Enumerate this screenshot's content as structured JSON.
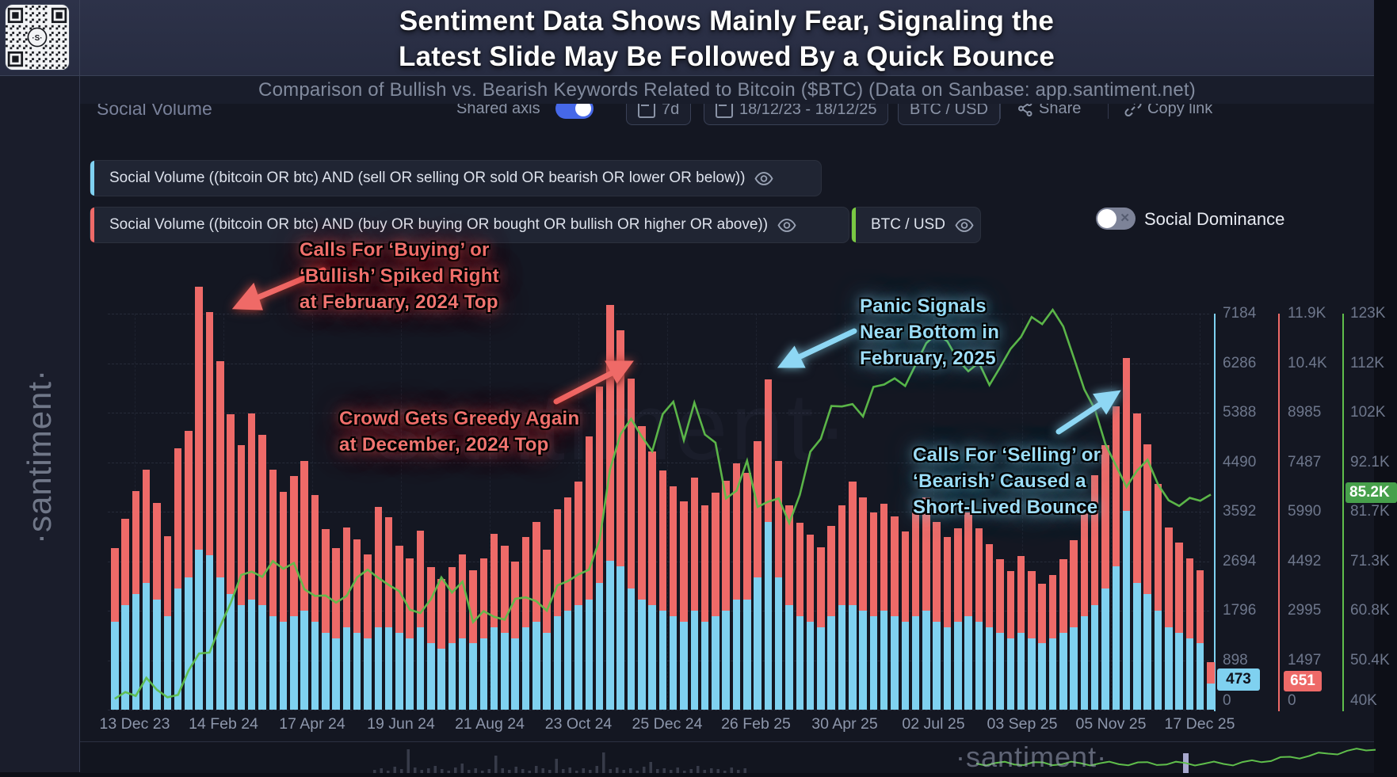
{
  "header": {
    "title_line1": "Sentiment Data Shows Mainly Fear, Signaling the",
    "title_line2": "Latest Slide May Be Followed By a Quick Bounce",
    "subtitle": "Comparison of Bullish vs. Bearish Keywords Related to Bitcoin ($BTC) (Data on Sanbase: app.santiment.net)"
  },
  "brand": {
    "vertical_text": "·santiment·",
    "qr_center_label": "·S·",
    "center_watermark": "·santiment·",
    "mini_watermark": "·santiment·"
  },
  "toolbar": {
    "widget_title": "Social Volume",
    "shared_axis_label": "Shared axis",
    "interval_label": "7d",
    "date_range": "18/12/23 - 18/12/25",
    "pair_label": "BTC / USD",
    "share_label": "Share",
    "copy_link_label": "Copy link"
  },
  "legend": {
    "bearish_query": "Social Volume ((bitcoin OR btc) AND (sell OR selling OR sold OR bearish OR lower OR below))",
    "bullish_query": "Social Volume ((bitcoin OR btc) AND (buy OR buying OR bought OR bullish OR higher OR above))",
    "price_label": "BTC / USD",
    "social_dominance_label": "Social Dominance"
  },
  "annotations": {
    "red": [
      {
        "lines": [
          "Calls For ‘Buying’ or",
          "‘Bullish’ Spiked Right",
          "at February, 2024 Top"
        ]
      },
      {
        "lines": [
          "Crowd Gets Greedy Again",
          "at December, 2024 Top"
        ]
      }
    ],
    "blue": [
      {
        "lines": [
          "Panic Signals",
          "Near Bottom in",
          "February, 2025"
        ]
      },
      {
        "lines": [
          "Calls For ‘Selling’ or",
          "‘Bearish’ Caused a",
          "Short-Lived Bounce"
        ]
      }
    ]
  },
  "colors": {
    "bearish_blue": "#7fd1f0",
    "bullish_red": "#ee6a68",
    "price_green": "#5fbe4b",
    "badge_green_bg": "#47a04b",
    "background": "#141722",
    "header_bg": "#2b3047"
  },
  "chart_data": {
    "type": "bar",
    "subtype": "stacked-bars-with-line",
    "title": "Social Volume",
    "x_labels": [
      "13 Dec 23",
      "14 Feb 24",
      "17 Apr 24",
      "19 Jun 24",
      "21 Aug 24",
      "23 Oct 24",
      "25 Dec 24",
      "26 Feb 25",
      "30 Apr 25",
      "02 Jul 25",
      "03 Sep 25",
      "05 Nov 25",
      "17 Dec 25"
    ],
    "axes": {
      "bearish_blue_ticks": [
        "7184",
        "6286",
        "5388",
        "4490",
        "3592",
        "2694",
        "1796",
        "898",
        "0"
      ],
      "bullish_red_ticks": [
        "11.9K",
        "10.4K",
        "8985",
        "7487",
        "5990",
        "4492",
        "2995",
        "1497",
        "0"
      ],
      "price_green_ticks": [
        "123K",
        "112K",
        "102K",
        "92.1K",
        "81.7K",
        "71.3K",
        "60.8K",
        "50.4K",
        "40K"
      ],
      "bearish_axis_max": 7184,
      "bullish_axis_max": 11900,
      "price_axis_min_k": 40,
      "price_axis_max_k": 123.2
    },
    "current_values": {
      "bearish_blue": "473",
      "bullish_red": "651",
      "price_green": "85.2K"
    },
    "series": [
      {
        "name": "Social Volume (sell OR selling OR sold OR bearish OR lower OR below)",
        "color": "#7fd1f0",
        "values": [
          1600,
          1900,
          2100,
          2300,
          2000,
          1700,
          2200,
          2400,
          2900,
          2800,
          2400,
          2100,
          1900,
          2000,
          1900,
          1700,
          1600,
          1700,
          1800,
          1600,
          1400,
          1300,
          1500,
          1400,
          1300,
          1500,
          1500,
          1400,
          1300,
          1500,
          1200,
          1100,
          1200,
          1300,
          1200,
          1300,
          1500,
          1400,
          1300,
          1500,
          1600,
          1400,
          1700,
          1800,
          1900,
          2000,
          2300,
          2700,
          2600,
          2200,
          2000,
          1900,
          1800,
          1700,
          1600,
          1800,
          1600,
          1700,
          1800,
          2000,
          2000,
          2400,
          3400,
          2400,
          1900,
          1700,
          1600,
          1500,
          1700,
          1900,
          1900,
          1800,
          1700,
          1800,
          1700,
          1600,
          1700,
          1800,
          1600,
          1500,
          1600,
          1700,
          1600,
          1500,
          1400,
          1300,
          1400,
          1300,
          1200,
          1300,
          1400,
          1500,
          1700,
          1900,
          2200,
          2600,
          3600,
          2300,
          2100,
          1800,
          1500,
          1400,
          1300,
          1200,
          473
        ]
      },
      {
        "name": "Social Volume (buy OR buying OR bought OR bullish OR higher OR above)",
        "color": "#ee6a68",
        "values": [
          2200,
          2600,
          3100,
          3400,
          2900,
          2400,
          4200,
          4400,
          7900,
          7300,
          6500,
          5400,
          4800,
          5600,
          5100,
          4400,
          3900,
          4200,
          4500,
          3800,
          3100,
          2700,
          3000,
          2800,
          2500,
          3600,
          3300,
          2600,
          2400,
          2900,
          2300,
          2100,
          2300,
          2500,
          2200,
          2400,
          2800,
          2600,
          2300,
          2700,
          3000,
          2500,
          3200,
          3400,
          3700,
          4900,
          5900,
          7700,
          7100,
          6300,
          5200,
          4600,
          4200,
          3900,
          3600,
          4000,
          3500,
          3700,
          3900,
          4100,
          3800,
          4100,
          4300,
          3500,
          3000,
          2800,
          2600,
          2400,
          2700,
          3000,
          3700,
          3400,
          3100,
          3200,
          3000,
          2700,
          3100,
          3400,
          3000,
          2700,
          2800,
          3100,
          2800,
          2500,
          2200,
          2000,
          2300,
          2000,
          1800,
          1900,
          2200,
          2600,
          3400,
          3900,
          4300,
          4800,
          4600,
          5100,
          4500,
          3800,
          3000,
          2700,
          2400,
          2200,
          651
        ]
      },
      {
        "name": "BTC / USD price (thousand USD)",
        "color": "#5fbe4b",
        "values": [
          42.3,
          43.7,
          42.9,
          46.7,
          44.2,
          42.6,
          43.1,
          48.2,
          51.8,
          52.0,
          57.5,
          62.4,
          68.3,
          69.0,
          67.9,
          71.2,
          69.6,
          70.8,
          65.3,
          63.9,
          64.0,
          62.5,
          63.9,
          67.8,
          69.4,
          67.7,
          66.2,
          64.9,
          61.0,
          60.3,
          63.2,
          67.8,
          64.6,
          66.9,
          58.4,
          60.7,
          59.5,
          58.9,
          63.3,
          63.6,
          62.8,
          60.8,
          66.1,
          67.0,
          68.4,
          69.4,
          75.6,
          90.5,
          97.9,
          101.1,
          97.4,
          94.3,
          102.1,
          104.7,
          96.6,
          104.5,
          97.8,
          96.1,
          84.4,
          86.0,
          92.3,
          82.6,
          83.7,
          84.4,
          79.2,
          85.1,
          94.2,
          96.9,
          103.8,
          103.7,
          104.2,
          101.6,
          107.8,
          108.3,
          109.6,
          108.0,
          112.5,
          117.0,
          119.0,
          117.4,
          113.5,
          111.1,
          112.9,
          108.2,
          111.9,
          115.8,
          118.3,
          122.5,
          121.0,
          124.0,
          120.5,
          114.0,
          107.3,
          103.1,
          95.8,
          91.3,
          86.8,
          90.2,
          92.5,
          87.3,
          84.0,
          82.8,
          84.5,
          83.9,
          85.2
        ]
      }
    ],
    "legend_position": "top-left",
    "grid": "dashed"
  }
}
